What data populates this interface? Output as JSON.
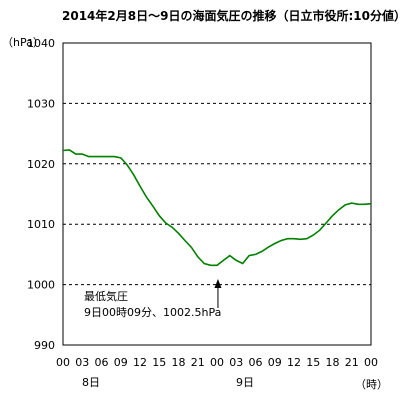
{
  "chart_data": {
    "type": "line",
    "title": "2014年2月8日～9日の海面気圧の推移（日立市役所:10分値）",
    "ylabel": "（hPa）",
    "xlabel": "（時）",
    "ylim": [
      990,
      1040
    ],
    "yticks": [
      990,
      1000,
      1010,
      1020,
      1030,
      1040
    ],
    "grid": "horizontal dashed",
    "xticks": [
      "00",
      "03",
      "06",
      "09",
      "12",
      "15",
      "18",
      "21",
      "00",
      "03",
      "06",
      "09",
      "12",
      "15",
      "18",
      "21",
      "00"
    ],
    "date_labels": [
      {
        "label": "8日",
        "hour": 0
      },
      {
        "label": "9日",
        "hour": 24
      }
    ],
    "line_color": "#008000",
    "series": [
      {
        "x": [
          0,
          1,
          2,
          3,
          4,
          5,
          6,
          7,
          8,
          9,
          10,
          11,
          12,
          13,
          14,
          15,
          16,
          17,
          18,
          19,
          20,
          21,
          22,
          23,
          24,
          25,
          26,
          27,
          28,
          29,
          30,
          31,
          32,
          33,
          34,
          35,
          36,
          37,
          38,
          39,
          40,
          41,
          42,
          43,
          44,
          45,
          46,
          47,
          48
        ],
        "values": [
          1022.2,
          1022.3,
          1021.6,
          1021.6,
          1021.2,
          1021.2,
          1021.2,
          1021.2,
          1021.2,
          1021,
          1019.8,
          1018.2,
          1016.3,
          1014.5,
          1013,
          1011.4,
          1010.2,
          1009.5,
          1008.5,
          1007.3,
          1006.2,
          1004.6,
          1003.5,
          1003.2,
          1003.2,
          1004,
          1004.8,
          1004,
          1003.5,
          1004.8,
          1005,
          1005.5,
          1006.2,
          1006.8,
          1007.3,
          1007.6,
          1007.6,
          1007.5,
          1007.6,
          1008.2,
          1009,
          1010.2,
          1011.4,
          1012.4,
          1013.2,
          1013.5,
          1013.3,
          1013.3,
          1013.4
        ]
      }
    ],
    "annotation": {
      "line1": "最低気圧",
      "line2": "9日00時09分、1002.5hPa",
      "hour": 24.15
    }
  }
}
